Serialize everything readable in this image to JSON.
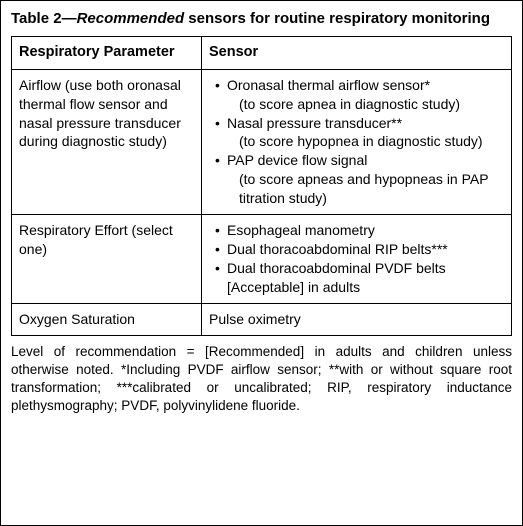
{
  "caption": {
    "lead": "Table 2—",
    "recommended": "Recommended",
    "rest": " sensors for routine respiratory monitoring"
  },
  "headers": {
    "param": "Respiratory Parameter",
    "sensor": "Sensor"
  },
  "rows": [
    {
      "param": "Airflow (use both oronasal thermal flow sensor and nasal pressure transducer during diagnostic study)",
      "sensors": [
        {
          "main": "Oronasal thermal airflow sensor*",
          "sub": "(to score apnea in diagnostic study)"
        },
        {
          "main": "Nasal pressure transducer**",
          "sub": "(to score hypopnea in diagnostic study)"
        },
        {
          "main": "PAP device flow signal",
          "sub": "(to score apneas and hypopneas in PAP titration study)"
        }
      ]
    },
    {
      "param": "Respiratory Effort (select one)",
      "sensors": [
        {
          "main": "Esophageal manometry"
        },
        {
          "main": "Dual thoracoabdominal RIP belts***"
        },
        {
          "main": "Dual thoracoabdominal PVDF belts [Acceptable] in adults"
        }
      ]
    },
    {
      "param": "Oxygen Saturation",
      "sensor_plain": "Pulse oximetry"
    }
  ],
  "footnote": "Level of recommendation = [Recommended] in adults and children unless otherwise noted. *Including PVDF airflow sensor; **with or without square root transformation; ***calibrated or uncalibrated; RIP, respiratory inductance plethysmography; PVDF, polyvinylidene fluoride.",
  "style": {
    "border_color": "#000000",
    "background": "#ffffff",
    "text_color": "#000000",
    "caption_fontsize": 15,
    "cell_fontsize": 14,
    "footnote_fontsize": 13.5,
    "container_width": 523,
    "container_height": 526
  }
}
